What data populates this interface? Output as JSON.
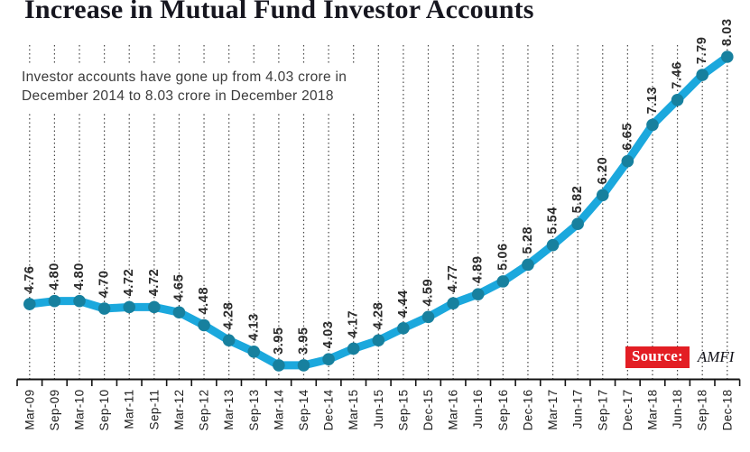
{
  "title": "Increase in Mutual Fund Investor Accounts",
  "subtitle": {
    "line1": "Investor accounts have gone up from 4.03 crore in",
    "line2": "December 2014 to 8.03 crore in December 2018"
  },
  "source": {
    "label": "Source:",
    "value": "AMFI"
  },
  "colors": {
    "line": "#1ba8dd",
    "dot": "#17809e",
    "accent_red": "#e31e24",
    "grid": "#454545",
    "axis": "#141414",
    "value_label": "#2b2b2b",
    "tick_label": "#1d1d1d"
  },
  "chart_data": {
    "type": "line",
    "title": "Increase in Mutual Fund Investor Accounts",
    "xlabel": "",
    "ylabel": "",
    "unit": "crore accounts",
    "grid": "vertical-dotted",
    "legend": "none",
    "point_labels": true,
    "ylim": [
      3.75,
      8.2
    ],
    "categories": [
      "Mar-09",
      "Sep-09",
      "Mar-10",
      "Sep-10",
      "Mar-11",
      "Sep-11",
      "Mar-12",
      "Sep-12",
      "Mar-13",
      "Sep-13",
      "Mar-14",
      "Sep-14",
      "Dec-14",
      "Mar-15",
      "Jun-15",
      "Sep-15",
      "Dec-15",
      "Mar-16",
      "Jun-16",
      "Sep-16",
      "Dec-16",
      "Mar-17",
      "Jun-17",
      "Sep-17",
      "Dec-17",
      "Mar-18",
      "Jun-18",
      "Sep-18",
      "Dec-18"
    ],
    "values": [
      4.76,
      4.8,
      4.8,
      4.7,
      4.72,
      4.72,
      4.65,
      4.48,
      4.28,
      4.13,
      3.95,
      3.95,
      4.03,
      4.17,
      4.28,
      4.44,
      4.59,
      4.77,
      4.89,
      5.06,
      5.28,
      5.54,
      5.82,
      6.2,
      6.65,
      7.13,
      7.46,
      7.79,
      8.03
    ]
  }
}
